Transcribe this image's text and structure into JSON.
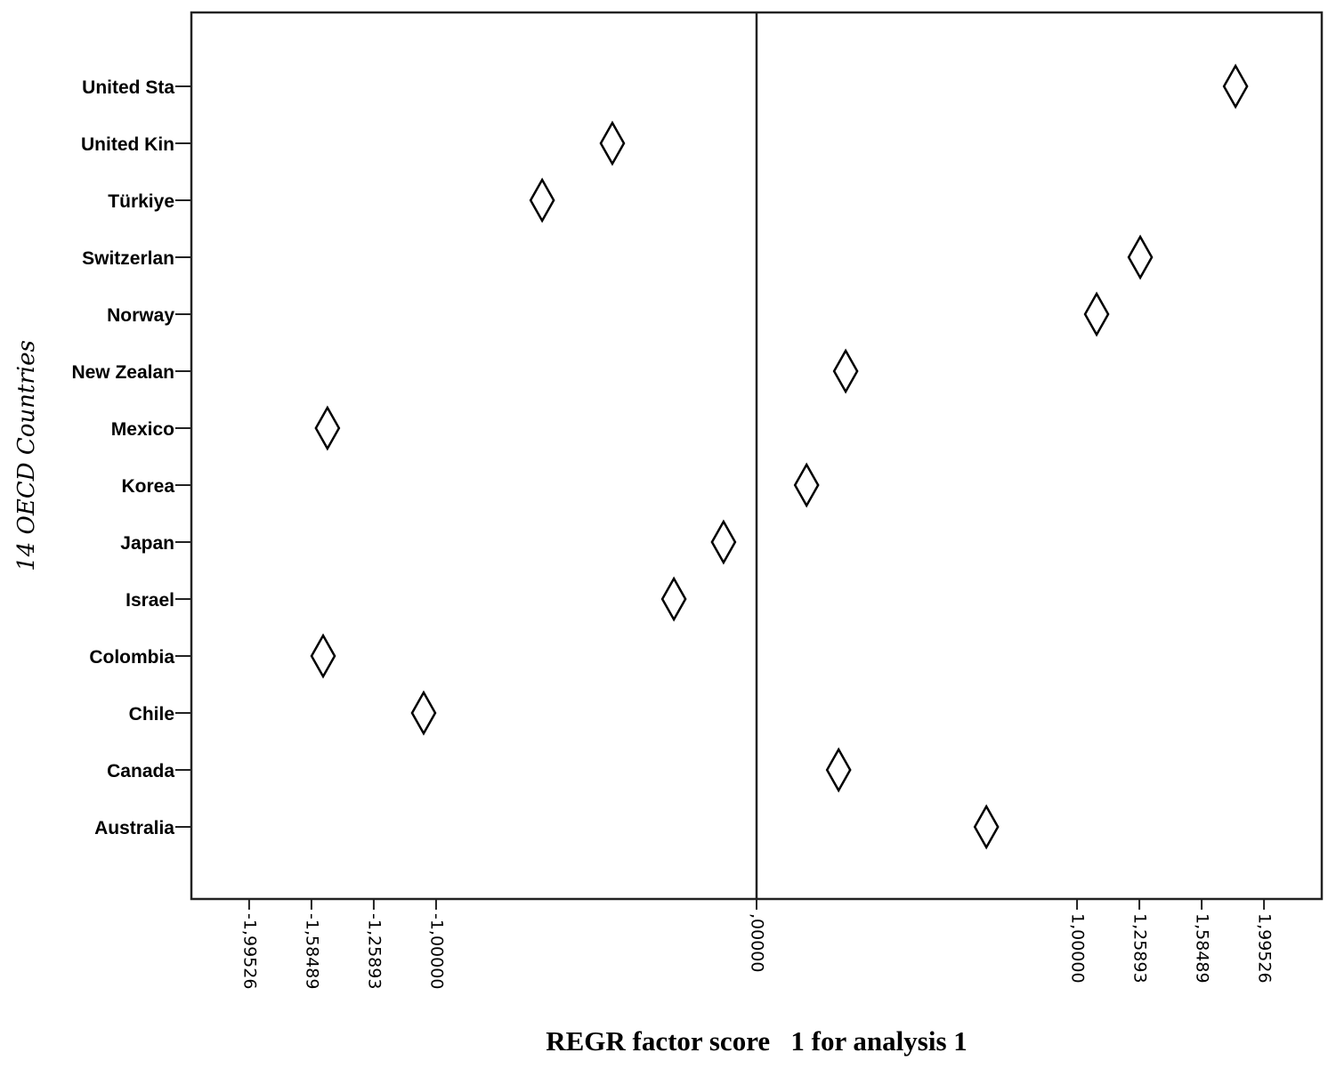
{
  "chart_data": {
    "type": "dot",
    "x_label": "REGR factor score   1 for analysis 1",
    "y_label": "14 OECD Countries",
    "categories": [
      "United Sta",
      "United Kin",
      "Türkiye",
      "Switzerlan",
      "Norway",
      "New Zealan",
      "Mexico",
      "Korea",
      "Japan",
      "Israel",
      "Colombia",
      "Chile",
      "Canada",
      "Australia"
    ],
    "values": [
      1.796,
      -0.45,
      -0.669,
      1.263,
      1.075,
      0.278,
      -1.494,
      0.156,
      -0.103,
      -0.258,
      -1.518,
      -1.047,
      0.256,
      0.717
    ],
    "xscale": "symlog",
    "xlim": [
      -2.47,
      2.47
    ],
    "xticks": [
      {
        "value": -1.99526,
        "label": "-1,99526"
      },
      {
        "value": -1.58489,
        "label": "-1,58489"
      },
      {
        "value": -1.25893,
        "label": "-1,25893"
      },
      {
        "value": -1.0,
        "label": "-1,00000"
      },
      {
        "value": 0,
        "label": ",00000"
      },
      {
        "value": 1.0,
        "label": "1,00000"
      },
      {
        "value": 1.25893,
        "label": "1,25893"
      },
      {
        "value": 1.58489,
        "label": "1,58489"
      },
      {
        "value": 1.99526,
        "label": "1,99526"
      }
    ],
    "reference_line": 0,
    "marker": "diamond",
    "color": "#000000",
    "marker_fill": "#ffffff"
  }
}
